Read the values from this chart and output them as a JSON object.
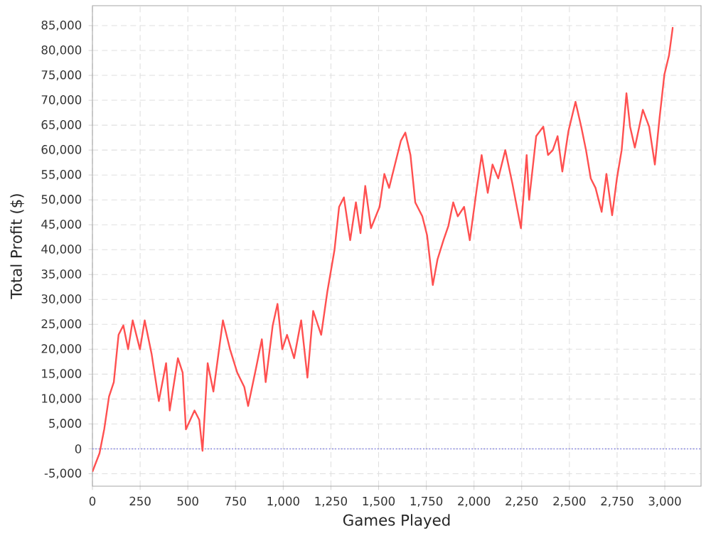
{
  "chart_data": {
    "type": "line",
    "xlabel": "Games Played",
    "ylabel": "Total Profit ($)",
    "xlim": [
      0,
      3190
    ],
    "ylim": [
      -7500,
      89000
    ],
    "xticks": [
      0,
      250,
      500,
      750,
      {
        "value": 1000,
        "label": "1,000"
      },
      {
        "value": 1250,
        "label": "1,250"
      },
      {
        "value": 1500,
        "label": "1,500"
      },
      {
        "value": 1750,
        "label": "1,750"
      },
      {
        "value": 2000,
        "label": "2,000"
      },
      {
        "value": 2250,
        "label": "2,250"
      },
      {
        "value": 2500,
        "label": "2,500"
      },
      {
        "value": 2750,
        "label": "2,750"
      },
      {
        "value": 3000,
        "label": "3,000"
      }
    ],
    "yticks": [
      {
        "value": -5000,
        "label": "-5,000"
      },
      0,
      {
        "value": 5000,
        "label": "5,000"
      },
      {
        "value": 10000,
        "label": "10,000"
      },
      {
        "value": 15000,
        "label": "15,000"
      },
      {
        "value": 20000,
        "label": "20,000"
      },
      {
        "value": 25000,
        "label": "25,000"
      },
      {
        "value": 30000,
        "label": "30,000"
      },
      {
        "value": 35000,
        "label": "35,000"
      },
      {
        "value": 40000,
        "label": "40,000"
      },
      {
        "value": 45000,
        "label": "45,000"
      },
      {
        "value": 50000,
        "label": "50,000"
      },
      {
        "value": 55000,
        "label": "55,000"
      },
      {
        "value": 60000,
        "label": "60,000"
      },
      {
        "value": 65000,
        "label": "65,000"
      },
      {
        "value": 70000,
        "label": "70,000"
      },
      {
        "value": 75000,
        "label": "75,000"
      },
      {
        "value": 80000,
        "label": "80,000"
      },
      {
        "value": 85000,
        "label": "85,000"
      }
    ],
    "grid": true,
    "marker": "none",
    "line_style": "solid",
    "ref_lines": [
      {
        "axis": "y",
        "value": 0,
        "color": "#7777dd",
        "line_style": "dotted"
      }
    ],
    "series": [
      {
        "color": "#ff5050",
        "x": [
          0,
          37,
          62,
          87,
          112,
          137,
          162,
          187,
          211,
          249,
          274,
          310,
          348,
          386,
          405,
          448,
          473,
          490,
          535,
          560,
          577,
          604,
          634,
          684,
          721,
          759,
          796,
          816,
          858,
          888,
          908,
          945,
          970,
          995,
          1020,
          1057,
          1094,
          1127,
          1157,
          1199,
          1231,
          1269,
          1293,
          1318,
          1351,
          1381,
          1405,
          1430,
          1460,
          1505,
          1530,
          1555,
          1592,
          1617,
          1640,
          1667,
          1692,
          1729,
          1754,
          1784,
          1809,
          1840,
          1866,
          1891,
          1915,
          1948,
          1978,
          2015,
          2040,
          2072,
          2097,
          2127,
          2164,
          2201,
          2246,
          2276,
          2289,
          2326,
          2363,
          2388,
          2413,
          2438,
          2463,
          2495,
          2532,
          2562,
          2587,
          2612,
          2637,
          2669,
          2694,
          2724,
          2749,
          2774,
          2799,
          2818,
          2843,
          2885,
          2918,
          2948,
          2973,
          2998,
          3022,
          3042
        ],
        "values": [
          -4600,
          -900,
          4000,
          10500,
          13400,
          22900,
          24800,
          20000,
          25800,
          20000,
          25800,
          19100,
          9600,
          17200,
          7700,
          18200,
          15300,
          3900,
          7700,
          5800,
          -400,
          17200,
          11500,
          25800,
          20000,
          15300,
          12400,
          8600,
          16300,
          22000,
          13400,
          24800,
          29100,
          20000,
          22900,
          18200,
          25800,
          14300,
          27700,
          22900,
          31500,
          40000,
          48600,
          50500,
          41900,
          49500,
          43300,
          52800,
          44300,
          48600,
          55200,
          52400,
          58100,
          61900,
          63500,
          59000,
          49500,
          46700,
          42900,
          32900,
          38100,
          41900,
          44800,
          49500,
          46700,
          48600,
          41900,
          52400,
          59000,
          51400,
          57100,
          54300,
          60000,
          53300,
          44300,
          59000,
          50000,
          62800,
          64700,
          59000,
          60000,
          62800,
          55700,
          63800,
          69700,
          64700,
          60000,
          54300,
          52400,
          47600,
          55200,
          46900,
          54300,
          60000,
          71400,
          64700,
          60500,
          68100,
          64700,
          57100,
          66600,
          75200,
          79000,
          84700
        ]
      }
    ]
  }
}
